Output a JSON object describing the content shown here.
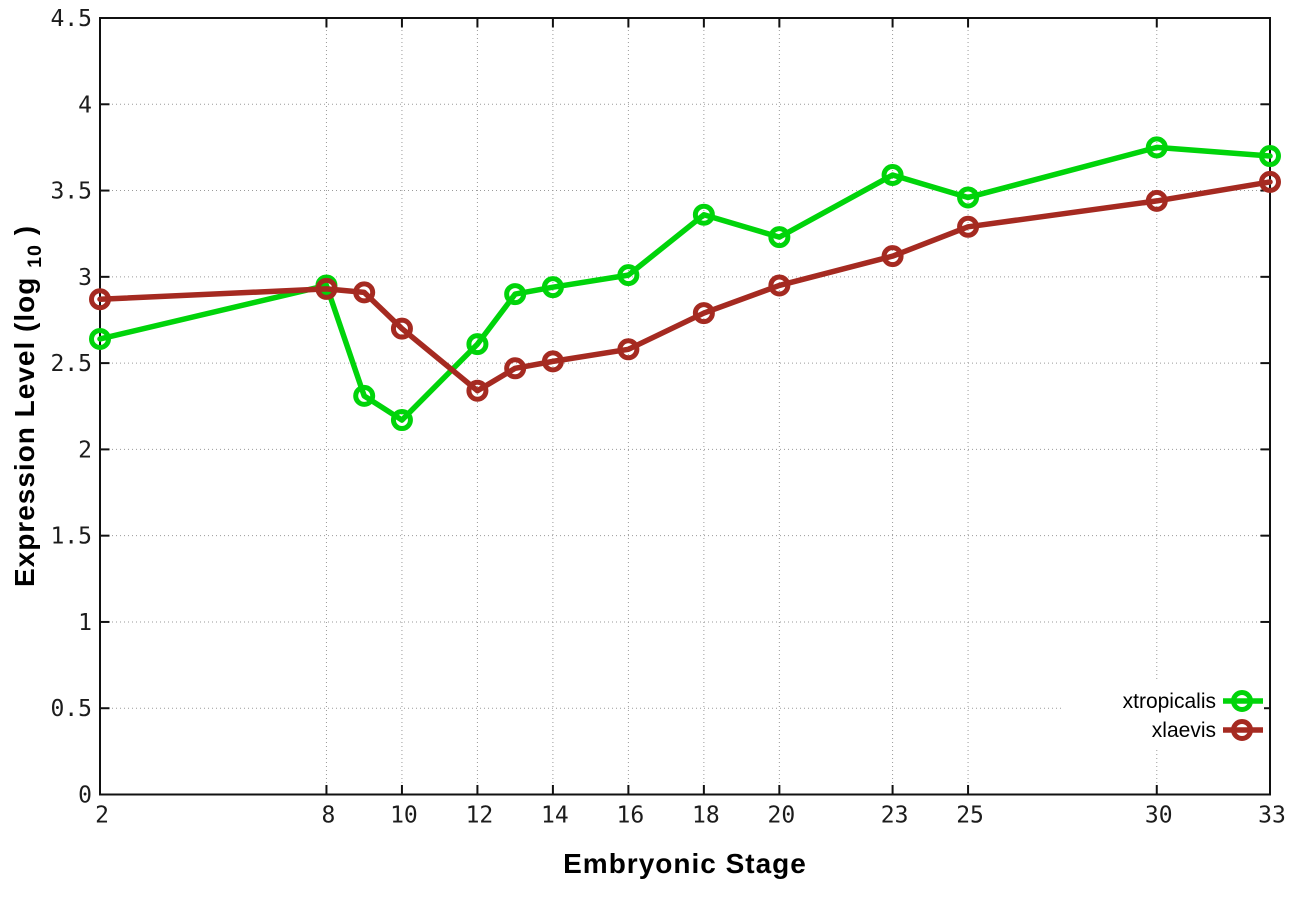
{
  "chart_data": {
    "type": "line",
    "title": "",
    "xlabel": "Embryonic Stage",
    "ylabel": "Expression Level (log10)",
    "ylabel_parts": {
      "main": "Expression Level (log",
      "sub": "10",
      "end": ")"
    },
    "x": [
      2,
      8,
      9,
      10,
      12,
      13,
      14,
      16,
      18,
      20,
      23,
      25,
      30,
      33
    ],
    "series": [
      {
        "name": "xtropicalis",
        "color": "#00d40a",
        "values": [
          2.64,
          2.95,
          2.31,
          2.17,
          2.61,
          2.9,
          2.94,
          3.01,
          3.36,
          3.23,
          3.59,
          3.46,
          3.75,
          3.7
        ]
      },
      {
        "name": "xlaevis",
        "color": "#a52a21",
        "values": [
          2.87,
          2.93,
          2.91,
          2.7,
          2.34,
          2.47,
          2.51,
          2.58,
          2.79,
          2.95,
          3.12,
          3.29,
          3.44,
          3.55
        ]
      }
    ],
    "xticks": [
      2,
      8,
      10,
      12,
      14,
      16,
      18,
      20,
      23,
      25,
      30,
      33
    ],
    "yticks": [
      0,
      0.5,
      1,
      1.5,
      2,
      2.5,
      3,
      3.5,
      4,
      4.5
    ],
    "xlim": [
      2,
      33
    ],
    "ylim": [
      0,
      4.5
    ],
    "grid": true,
    "grid_color": "#9a9a9a",
    "axis_color": "#111111",
    "legend_position": "bottom-right",
    "legend": [
      "xtropicalis",
      "xlaevis"
    ]
  }
}
